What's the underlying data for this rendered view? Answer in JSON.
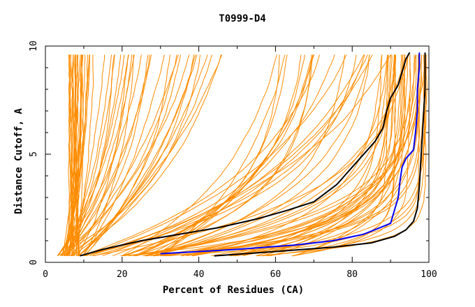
{
  "chart_data": {
    "type": "line",
    "title": "T0999-D4",
    "xlabel": "Percent of Residues (CA)",
    "ylabel": "Distance Cutoff, A",
    "xlim": [
      0,
      100
    ],
    "ylim": [
      0,
      10
    ],
    "x_ticks": [
      "0",
      "20",
      "40",
      "60",
      "80",
      "100"
    ],
    "y_ticks": [
      "0",
      "5",
      "10"
    ],
    "colors": {
      "models": "#ff8c00",
      "highlight_black": "#000000",
      "highlight_blue": "#0000ff",
      "frame": "#000000"
    },
    "background_models": {
      "count": 120,
      "note": "orange cumulative GDT-style curves (distance cutoff vs percent of residues), approximated"
    },
    "highlight_series": [
      {
        "name": "black-1",
        "color": "#000000",
        "points": [
          [
            9,
            0.3
          ],
          [
            15,
            0.6
          ],
          [
            25,
            1.0
          ],
          [
            35,
            1.3
          ],
          [
            45,
            1.6
          ],
          [
            55,
            2.0
          ],
          [
            63,
            2.4
          ],
          [
            70,
            2.8
          ],
          [
            73,
            3.2
          ],
          [
            76,
            3.6
          ],
          [
            78,
            4.0
          ],
          [
            80,
            4.4
          ],
          [
            82,
            4.8
          ],
          [
            84,
            5.2
          ],
          [
            86,
            5.6
          ],
          [
            88,
            6.2
          ],
          [
            89,
            7.0
          ],
          [
            90,
            7.6
          ],
          [
            92,
            8.2
          ],
          [
            93,
            8.8
          ],
          [
            94,
            9.4
          ],
          [
            95,
            9.7
          ]
        ]
      },
      {
        "name": "blue",
        "color": "#0000ff",
        "points": [
          [
            30,
            0.4
          ],
          [
            50,
            0.6
          ],
          [
            65,
            0.8
          ],
          [
            75,
            1.0
          ],
          [
            83,
            1.3
          ],
          [
            90,
            1.8
          ],
          [
            91,
            2.4
          ],
          [
            92,
            3.0
          ],
          [
            92.5,
            3.8
          ],
          [
            93,
            4.4
          ],
          [
            94,
            4.8
          ],
          [
            96,
            5.2
          ],
          [
            96.5,
            6.0
          ],
          [
            97,
            7.0
          ],
          [
            97,
            8.0
          ],
          [
            97.5,
            9.0
          ],
          [
            97.5,
            9.7
          ]
        ]
      },
      {
        "name": "black-2",
        "color": "#000000",
        "points": [
          [
            44,
            0.3
          ],
          [
            60,
            0.5
          ],
          [
            75,
            0.7
          ],
          [
            85,
            0.9
          ],
          [
            91,
            1.2
          ],
          [
            94,
            1.5
          ],
          [
            96,
            1.9
          ],
          [
            97,
            2.5
          ],
          [
            97.5,
            3.5
          ],
          [
            98,
            5.0
          ],
          [
            98.5,
            6.5
          ],
          [
            99,
            8.0
          ],
          [
            99,
            9.7
          ]
        ]
      }
    ]
  }
}
